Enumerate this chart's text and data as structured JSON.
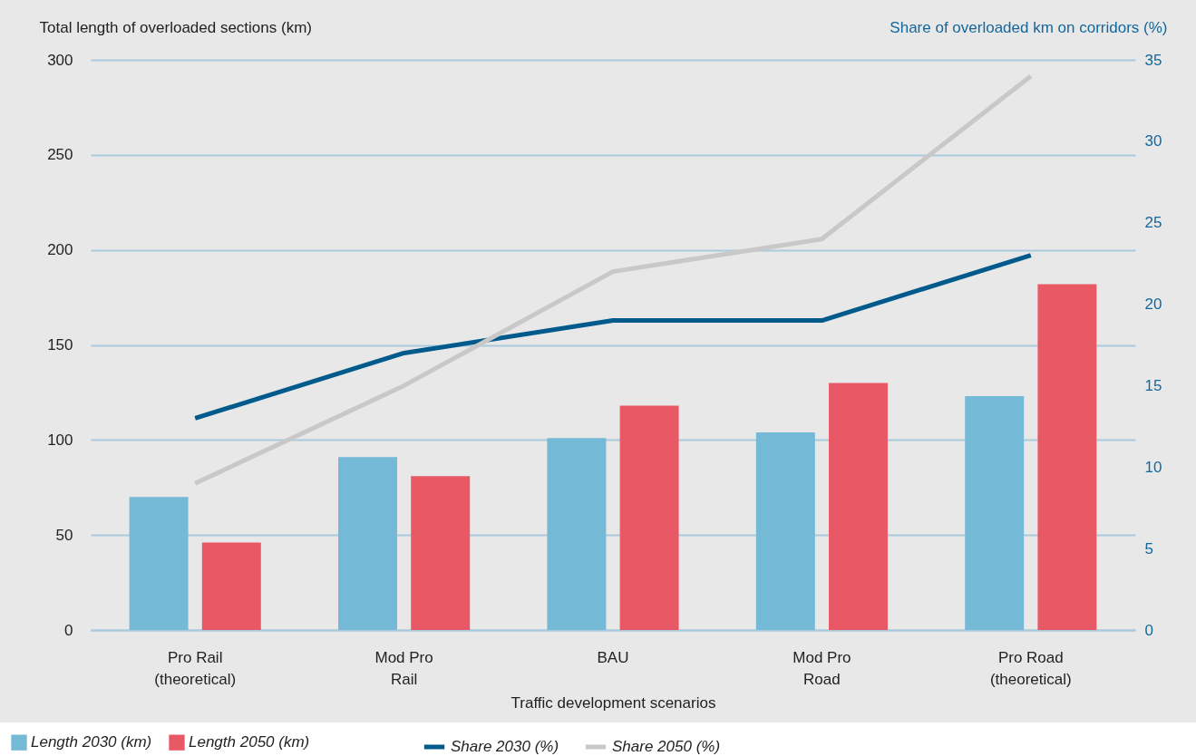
{
  "chart_data": {
    "type": "bar",
    "categories": [
      "Pro Rail\n(theoretical)",
      "Mod Pro\nRail",
      "BAU",
      "Mod Pro\nRoad",
      "Pro Road\n(theoretical)"
    ],
    "series": [
      {
        "name": "Length 2030 (km)",
        "color": "#74b9d6",
        "values": [
          70,
          91,
          101,
          104,
          123
        ]
      },
      {
        "name": "Length 2050 (km)",
        "color": "#e95965",
        "values": [
          46,
          81,
          118,
          130,
          182
        ]
      },
      {
        "name": "Share 2030 (%)",
        "type": "line",
        "axis": "y2",
        "color": "#005a8c",
        "values": [
          13,
          17,
          19,
          19,
          23
        ]
      },
      {
        "name": "Share 2050 (%)",
        "type": "line",
        "axis": "y2",
        "color": "#c8c8c8",
        "values": [
          9,
          15,
          22,
          24,
          34
        ]
      }
    ],
    "xlabel": "Traffic development scenarios",
    "ylabel": "Total length of overloaded sections (km)",
    "y2label": "Share of overloaded km on corridors (%)",
    "ylim": [
      0,
      300
    ],
    "yticks": [
      0,
      50,
      100,
      150,
      200,
      250,
      300
    ],
    "y2lim": [
      0,
      35
    ],
    "y2ticks": [
      0,
      5,
      10,
      15,
      20,
      25,
      30,
      35
    ],
    "grid": "y",
    "legend": "bottom"
  }
}
